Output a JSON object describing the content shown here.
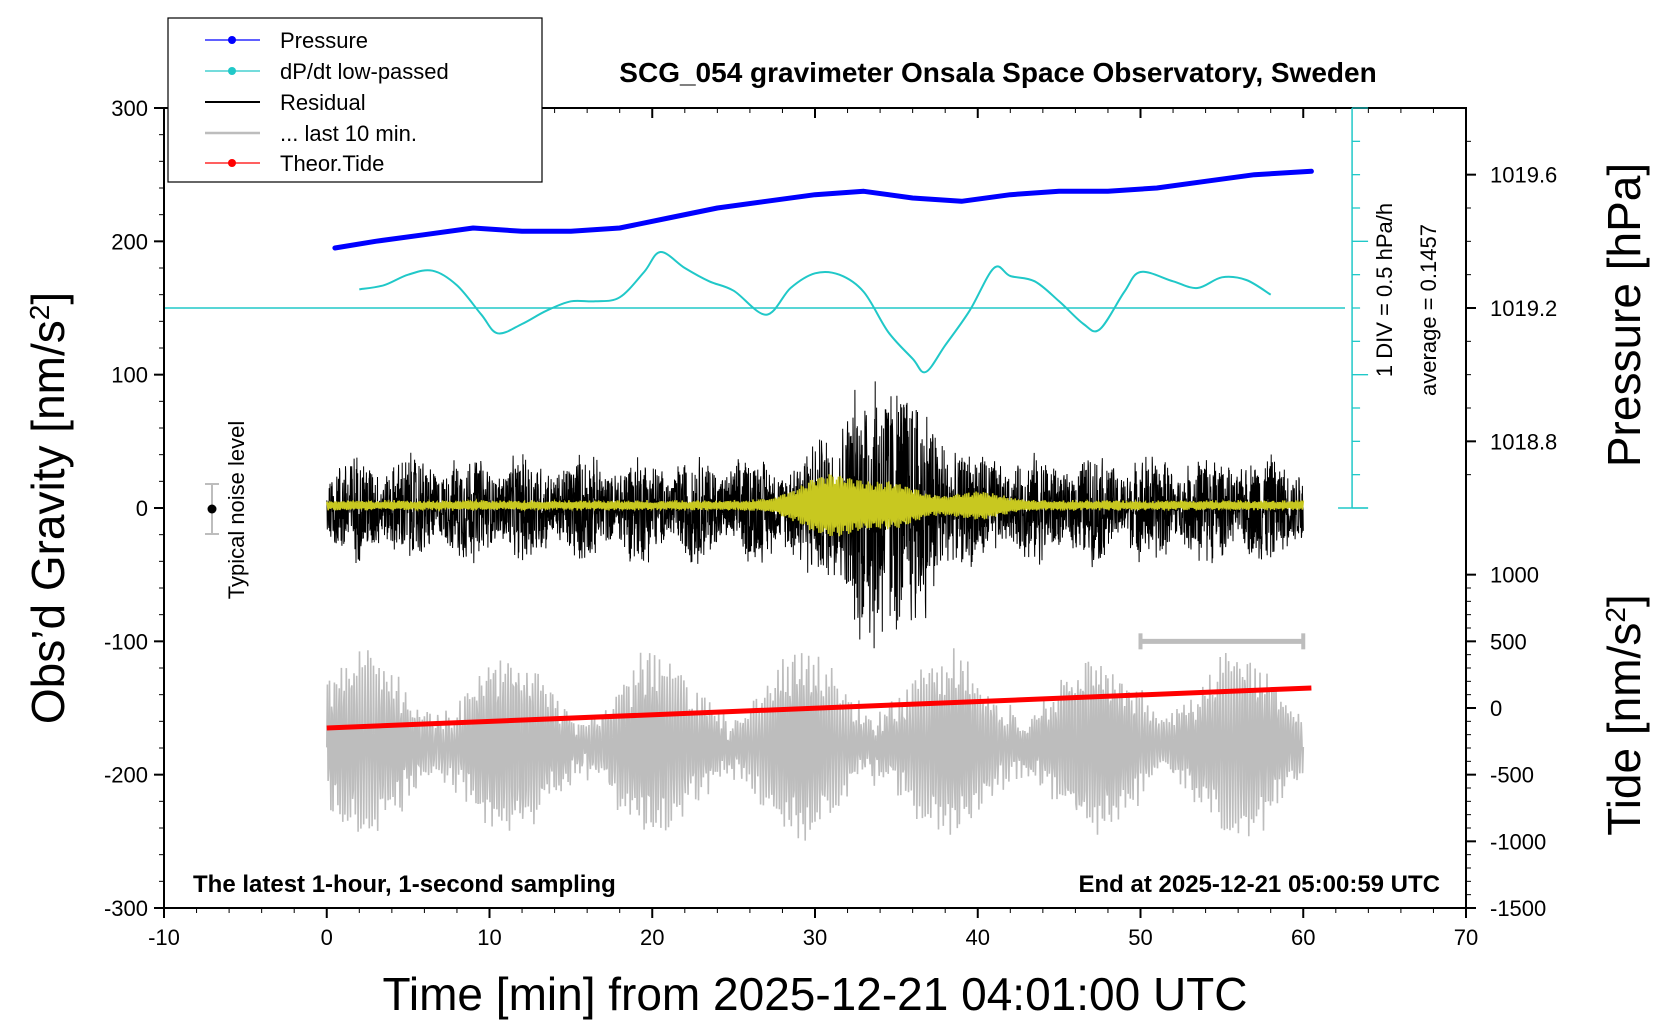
{
  "chart_data": {
    "type": "line",
    "title": "SCG_054 gravimeter Onsala Space Observatory, Sweden",
    "xlabel": "Time [min] from 2025-12-21 04:01:00 UTC",
    "ylabel": "Obs’d Gravity [nm/s",
    "ylabel_sup": "2",
    "ylabel_end": "]",
    "right_label_top": "Pressure [hPa]",
    "right_label_bottom": "Tide [nm/s",
    "right_label_bottom_sup": "2",
    "right_label_bottom_end": "]",
    "xlim": [
      -10,
      70
    ],
    "ylim": [
      -300,
      300
    ],
    "x_ticks": [
      "-10",
      "0",
      "10",
      "20",
      "30",
      "40",
      "50",
      "60",
      "70"
    ],
    "y_ticks": [
      "300",
      "200",
      "100",
      "0",
      "-100",
      "-200",
      "-300"
    ],
    "pressure_ticks": [
      "1019.6",
      "1019.2",
      "1018.8"
    ],
    "tide_ticks": [
      "1000",
      "500",
      "0",
      "-500",
      "-1000",
      "-1500"
    ],
    "pressure_scale_label": "1 DIV = 0.5 hPa/h",
    "pressure_average_label": "average = 0.1457",
    "noise_label": "Typical noise level",
    "note_left": "The latest 1-hour, 1-second sampling",
    "note_right": "End at 2025-12-21 05:00:59 UTC",
    "legend": [
      "Pressure",
      "dP/dt low-passed",
      "Residual",
      "... last 10 min.",
      "Theor.Tide"
    ],
    "colors": {
      "pressure": "#0000ff",
      "dpdt": "#20c8c8",
      "residual": "#000000",
      "residual_smooth": "#c8c820",
      "last10": "#bdbdbd",
      "tide": "#ff0000"
    },
    "series": [
      {
        "name": "Pressure",
        "unit": "hPa",
        "x": [
          0.5,
          3,
          6,
          9,
          12,
          15,
          18,
          21,
          24,
          27,
          30,
          33,
          36,
          39,
          42,
          45,
          48,
          51,
          54,
          57,
          60.5
        ],
        "y": [
          1019.38,
          1019.4,
          1019.42,
          1019.44,
          1019.43,
          1019.43,
          1019.44,
          1019.47,
          1019.5,
          1019.52,
          1019.54,
          1019.55,
          1019.53,
          1019.52,
          1019.54,
          1019.55,
          1019.55,
          1019.56,
          1019.58,
          1019.6,
          1019.61
        ]
      },
      {
        "name": "dP/dt low-passed",
        "unit": "nm/s2 axis",
        "x": [
          2,
          3.5,
          5,
          6.5,
          8,
          9.5,
          10.5,
          12,
          13.5,
          15,
          16.5,
          18,
          19.5,
          20.5,
          22,
          23.5,
          25,
          27,
          28.5,
          30,
          31.5,
          33,
          34.5,
          36,
          36.8,
          38,
          39.5,
          41,
          42,
          43.5,
          45,
          46.5,
          47.5,
          49,
          50,
          52,
          53.5,
          55,
          56.5,
          58
        ],
        "y": [
          164,
          167,
          175,
          178,
          167,
          145,
          131,
          138,
          148,
          155,
          155,
          158,
          177,
          192,
          180,
          170,
          163,
          145,
          165,
          176,
          175,
          162,
          132,
          112,
          102,
          122,
          148,
          180,
          174,
          170,
          155,
          138,
          134,
          162,
          177,
          170,
          165,
          173,
          171,
          160
        ]
      },
      {
        "name": "Residual",
        "x_range": [
          0,
          60
        ],
        "approx_amplitude": 45,
        "max": 147,
        "min": -141
      },
      {
        "name": "... last 10 min.",
        "x_range": [
          0,
          60
        ],
        "y_range": [
          -265,
          -92
        ],
        "scale_bar_x": [
          50,
          60
        ]
      },
      {
        "name": "Theor.Tide",
        "unit": "nm/s2 (tide axis)",
        "x": [
          0,
          60.5
        ],
        "y": [
          -165,
          -135
        ]
      }
    ]
  }
}
